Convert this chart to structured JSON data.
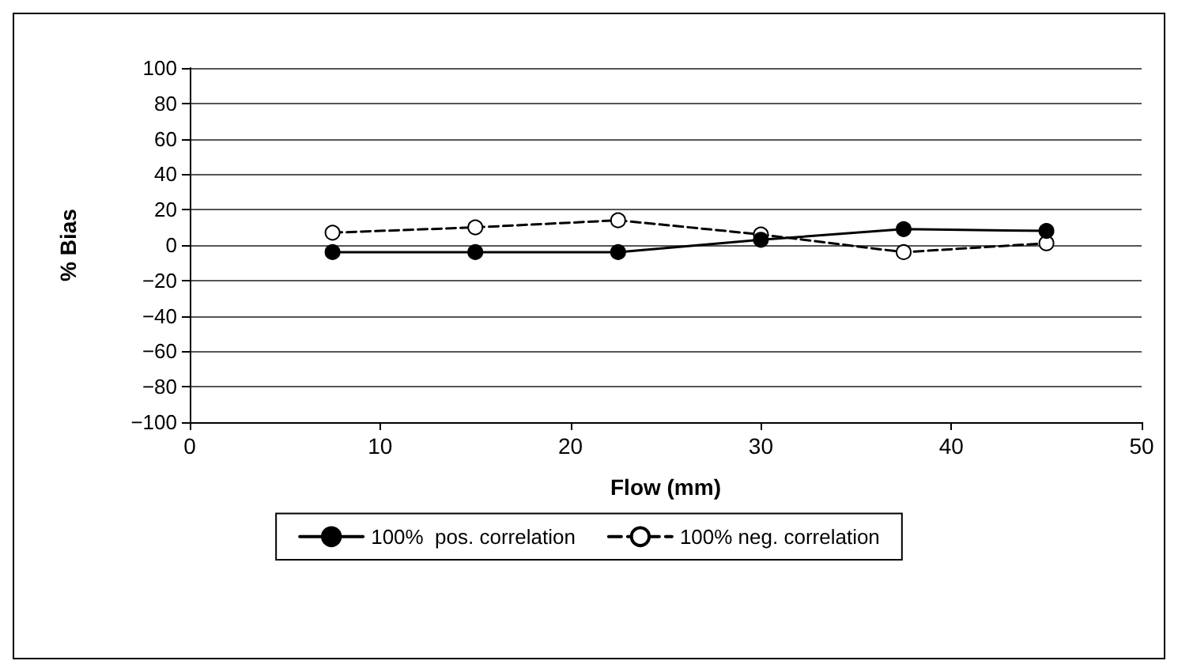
{
  "chart_data": {
    "type": "line",
    "xlabel": "Flow (mm)",
    "ylabel": "% Bias",
    "xlim": [
      0,
      50
    ],
    "xticks": [
      0,
      10,
      20,
      30,
      40,
      50
    ],
    "ylim": [
      -100,
      100
    ],
    "yticks": [
      {
        "value": -100,
        "label": "−100"
      },
      {
        "value": -80,
        "label": "−80"
      },
      {
        "value": -60,
        "label": "−60"
      },
      {
        "value": -40,
        "label": "−40"
      },
      {
        "value": -20,
        "label": "−20"
      },
      0,
      20,
      40,
      60,
      80,
      100
    ],
    "grid": "y",
    "legend": "bottom",
    "marker": "circle",
    "series": [
      {
        "name": "100%  pos. correlation",
        "color": "#000000",
        "line_style": "solid",
        "x": [
          7.5,
          15,
          22.5,
          30,
          37.5,
          45
        ],
        "values": [
          -4,
          -4,
          -4,
          3,
          9,
          8
        ]
      },
      {
        "name": "100% neg. correlation",
        "color": "#000000",
        "line_style": "dashed",
        "x": [
          7.5,
          15,
          22.5,
          30,
          37.5,
          45
        ],
        "values": [
          7,
          10,
          14,
          6,
          -4,
          1
        ]
      }
    ]
  }
}
